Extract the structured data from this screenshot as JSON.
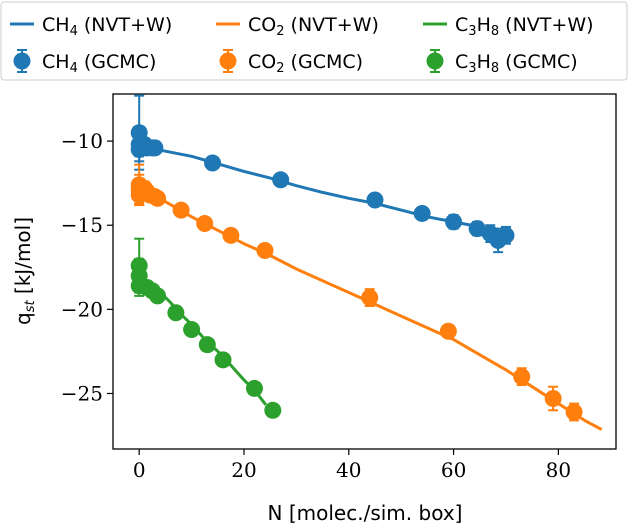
{
  "chart_data": {
    "type": "scatter",
    "xlabel": "N [molec./sim. box]",
    "ylabel_main": "q",
    "ylabel_sub": "st",
    "ylabel_rest": " [kJ/mol]",
    "xlim": [
      -5,
      91
    ],
    "ylim": [
      -28.3,
      -7.2
    ],
    "xticks": [
      0,
      20,
      40,
      60,
      80
    ],
    "yticks": [
      -10,
      -15,
      -20,
      -25
    ],
    "xtick_labels": [
      "0",
      "20",
      "40",
      "60",
      "80"
    ],
    "ytick_labels": [
      "−10",
      "−15",
      "−20",
      "−25"
    ],
    "grid": false,
    "legend_placement": "top, outside plot area",
    "colors": {
      "ch4": "#1f77b4",
      "co2": "#ff7f0e",
      "c3h8": "#2ca02c"
    },
    "legend": [
      {
        "pre": "CH",
        "sub": "4",
        "post": " (NVT+W)",
        "kind": "line",
        "color": "#1f77b4"
      },
      {
        "pre": "CO",
        "sub": "2",
        "post": " (NVT+W)",
        "kind": "line",
        "color": "#ff7f0e"
      },
      {
        "pre": "C",
        "sub": "3",
        "mid": "H",
        "sub2": "8",
        "post": " (NVT+W)",
        "kind": "line",
        "color": "#2ca02c"
      },
      {
        "pre": "CH",
        "sub": "4",
        "post": " (GCMC)",
        "kind": "marker",
        "color": "#1f77b4"
      },
      {
        "pre": "CO",
        "sub": "2",
        "post": " (GCMC)",
        "kind": "marker",
        "color": "#ff7f0e"
      },
      {
        "pre": "C",
        "sub": "3",
        "mid": "H",
        "sub2": "8",
        "post": " (GCMC)",
        "kind": "marker",
        "color": "#2ca02c"
      }
    ],
    "lines": [
      {
        "name": "CH4 (NVT+W)",
        "color": "#1f77b4",
        "x": [
          0,
          5,
          10,
          15,
          20,
          25,
          30,
          35,
          40,
          45,
          50,
          55,
          60,
          65,
          70
        ],
        "y": [
          -10.3,
          -10.6,
          -10.9,
          -11.35,
          -11.8,
          -12.2,
          -12.65,
          -13.05,
          -13.4,
          -13.7,
          -14.1,
          -14.5,
          -14.8,
          -15.1,
          -15.5
        ]
      },
      {
        "name": "CO2 (NVT+W)",
        "color": "#ff7f0e",
        "x": [
          0,
          5,
          10,
          15,
          20,
          25,
          30,
          35,
          40,
          45,
          50,
          55,
          60,
          65,
          70,
          75,
          80,
          85,
          88
        ],
        "y": [
          -12.8,
          -13.6,
          -14.5,
          -15.3,
          -16.1,
          -16.8,
          -17.6,
          -18.3,
          -19.0,
          -19.7,
          -20.4,
          -21.1,
          -21.8,
          -22.7,
          -23.6,
          -24.6,
          -25.6,
          -26.6,
          -27.1
        ]
      },
      {
        "name": "C3H8 (NVT+W)",
        "color": "#2ca02c",
        "x": [
          0,
          2,
          4,
          6,
          8,
          10,
          12,
          14,
          16,
          18,
          20,
          22,
          24
        ],
        "y": [
          -18.2,
          -18.5,
          -19.0,
          -19.6,
          -20.3,
          -20.9,
          -21.6,
          -22.2,
          -22.8,
          -23.5,
          -24.2,
          -24.8,
          -25.6
        ]
      }
    ],
    "points": [
      {
        "name": "CH4 (GCMC)",
        "color": "#1f77b4",
        "x": [
          0,
          0,
          0,
          1,
          1.5,
          2.5,
          3,
          14,
          27,
          45,
          54,
          60,
          64.5,
          67,
          68.5,
          70
        ],
        "y": [
          -9.5,
          -10.2,
          -10.5,
          -10.2,
          -10.4,
          -10.4,
          -10.4,
          -11.3,
          -12.3,
          -13.5,
          -14.3,
          -14.8,
          -15.2,
          -15.5,
          -15.9,
          -15.6
        ],
        "err": [
          2.2,
          1.0,
          0.4,
          0.3,
          0.3,
          0.3,
          0.3,
          0.2,
          0.2,
          0.2,
          0.3,
          0.4,
          0.4,
          0.5,
          0.7,
          0.5
        ]
      },
      {
        "name": "CO2 (GCMC)",
        "color": "#ff7f0e",
        "x": [
          0,
          0,
          0,
          1,
          1.5,
          2,
          3,
          3.5,
          8,
          12.5,
          17.5,
          24,
          44,
          59,
          73,
          79,
          83
        ],
        "y": [
          -12.6,
          -12.9,
          -13.2,
          -12.8,
          -13.0,
          -13.2,
          -13.3,
          -13.4,
          -14.1,
          -14.9,
          -15.6,
          -16.5,
          -19.3,
          -21.3,
          -24.0,
          -25.3,
          -26.1
        ],
        "err": [
          1.2,
          0.9,
          0.5,
          0.4,
          0.3,
          0.3,
          0.3,
          0.3,
          0.2,
          0.2,
          0.2,
          0.2,
          0.5,
          0.3,
          0.5,
          0.7,
          0.5
        ]
      },
      {
        "name": "C3H8 (GCMC)",
        "color": "#2ca02c",
        "x": [
          0,
          0,
          0,
          1.5,
          2.5,
          3.5,
          7,
          10,
          13,
          16,
          22,
          25.5
        ],
        "y": [
          -17.4,
          -18.0,
          -18.6,
          -18.7,
          -18.9,
          -19.2,
          -20.2,
          -21.2,
          -22.1,
          -23.0,
          -24.7,
          -26.0
        ],
        "err": [
          1.6,
          1.0,
          0.6,
          0.3,
          0.3,
          0.3,
          0.2,
          0.2,
          0.2,
          0.2,
          0.3,
          0.2
        ]
      }
    ]
  }
}
